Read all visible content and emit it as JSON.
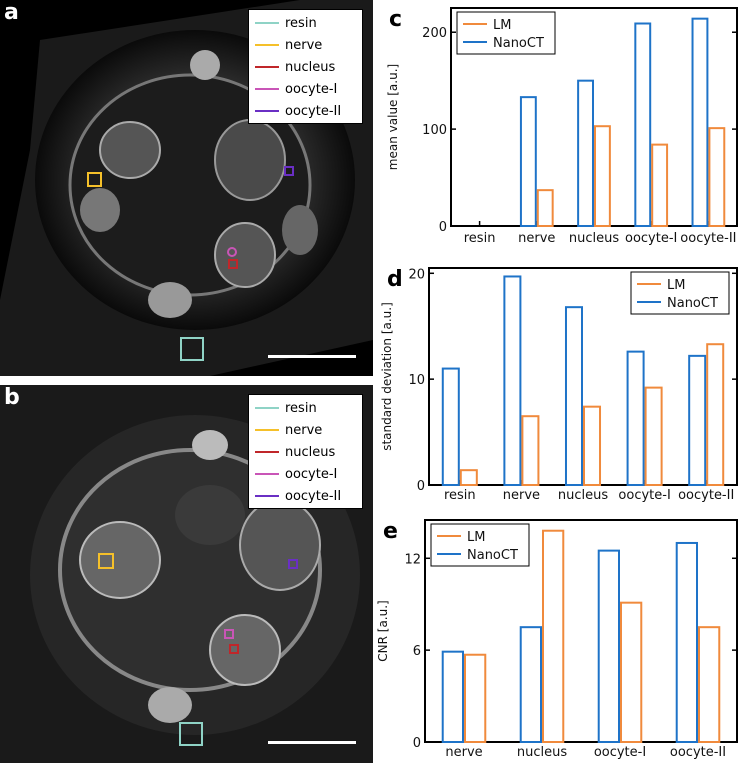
{
  "panels": {
    "a": {
      "label": "a"
    },
    "b": {
      "label": "b"
    },
    "c": {
      "label": "c"
    },
    "d": {
      "label": "d"
    },
    "e": {
      "label": "e"
    }
  },
  "image_legend": [
    {
      "label": "resin",
      "color": "#8fd3c6"
    },
    {
      "label": "nerve",
      "color": "#f5c02a"
    },
    {
      "label": "nucleus",
      "color": "#c0262a"
    },
    {
      "label": "oocyte-I",
      "color": "#c955b7"
    },
    {
      "label": "oocyte-II",
      "color": "#6a2fc4"
    }
  ],
  "colors": {
    "LM": "#f08a3c",
    "NanoCT": "#1e73c8"
  },
  "chart_data": [
    {
      "id": "c",
      "type": "bar",
      "categories": [
        "resin",
        "nerve",
        "nucleus",
        "oocyte-I",
        "oocyte-II"
      ],
      "series": [
        {
          "name": "NanoCT",
          "values": [
            0,
            133,
            150,
            209,
            214
          ]
        },
        {
          "name": "LM",
          "values": [
            0,
            37,
            103,
            84,
            101
          ]
        }
      ],
      "ylabel": "mean value [a.u.]",
      "ylim": [
        0,
        225
      ],
      "yticks": [
        0,
        100,
        200
      ],
      "legend": "top-left"
    },
    {
      "id": "d",
      "type": "bar",
      "categories": [
        "resin",
        "nerve",
        "nucleus",
        "oocyte-I",
        "oocyte-II"
      ],
      "series": [
        {
          "name": "NanoCT",
          "values": [
            11.0,
            19.7,
            16.8,
            12.6,
            12.2
          ]
        },
        {
          "name": "LM",
          "values": [
            1.4,
            6.5,
            7.4,
            9.2,
            13.3
          ]
        }
      ],
      "ylabel": "standard deviation [a.u.]",
      "ylim": [
        0,
        20.5
      ],
      "yticks": [
        0,
        10,
        20
      ],
      "legend": "top-right"
    },
    {
      "id": "e",
      "type": "bar",
      "categories": [
        "nerve",
        "nucleus",
        "oocyte-I",
        "oocyte-II"
      ],
      "series": [
        {
          "name": "NanoCT",
          "values": [
            5.9,
            7.5,
            12.5,
            13.0
          ]
        },
        {
          "name": "LM",
          "values": [
            5.7,
            13.8,
            9.1,
            7.5
          ]
        }
      ],
      "ylabel": "CNR [a.u.]",
      "ylim": [
        0,
        14.5
      ],
      "yticks": [
        0,
        6,
        12
      ],
      "legend": "top-left"
    }
  ]
}
